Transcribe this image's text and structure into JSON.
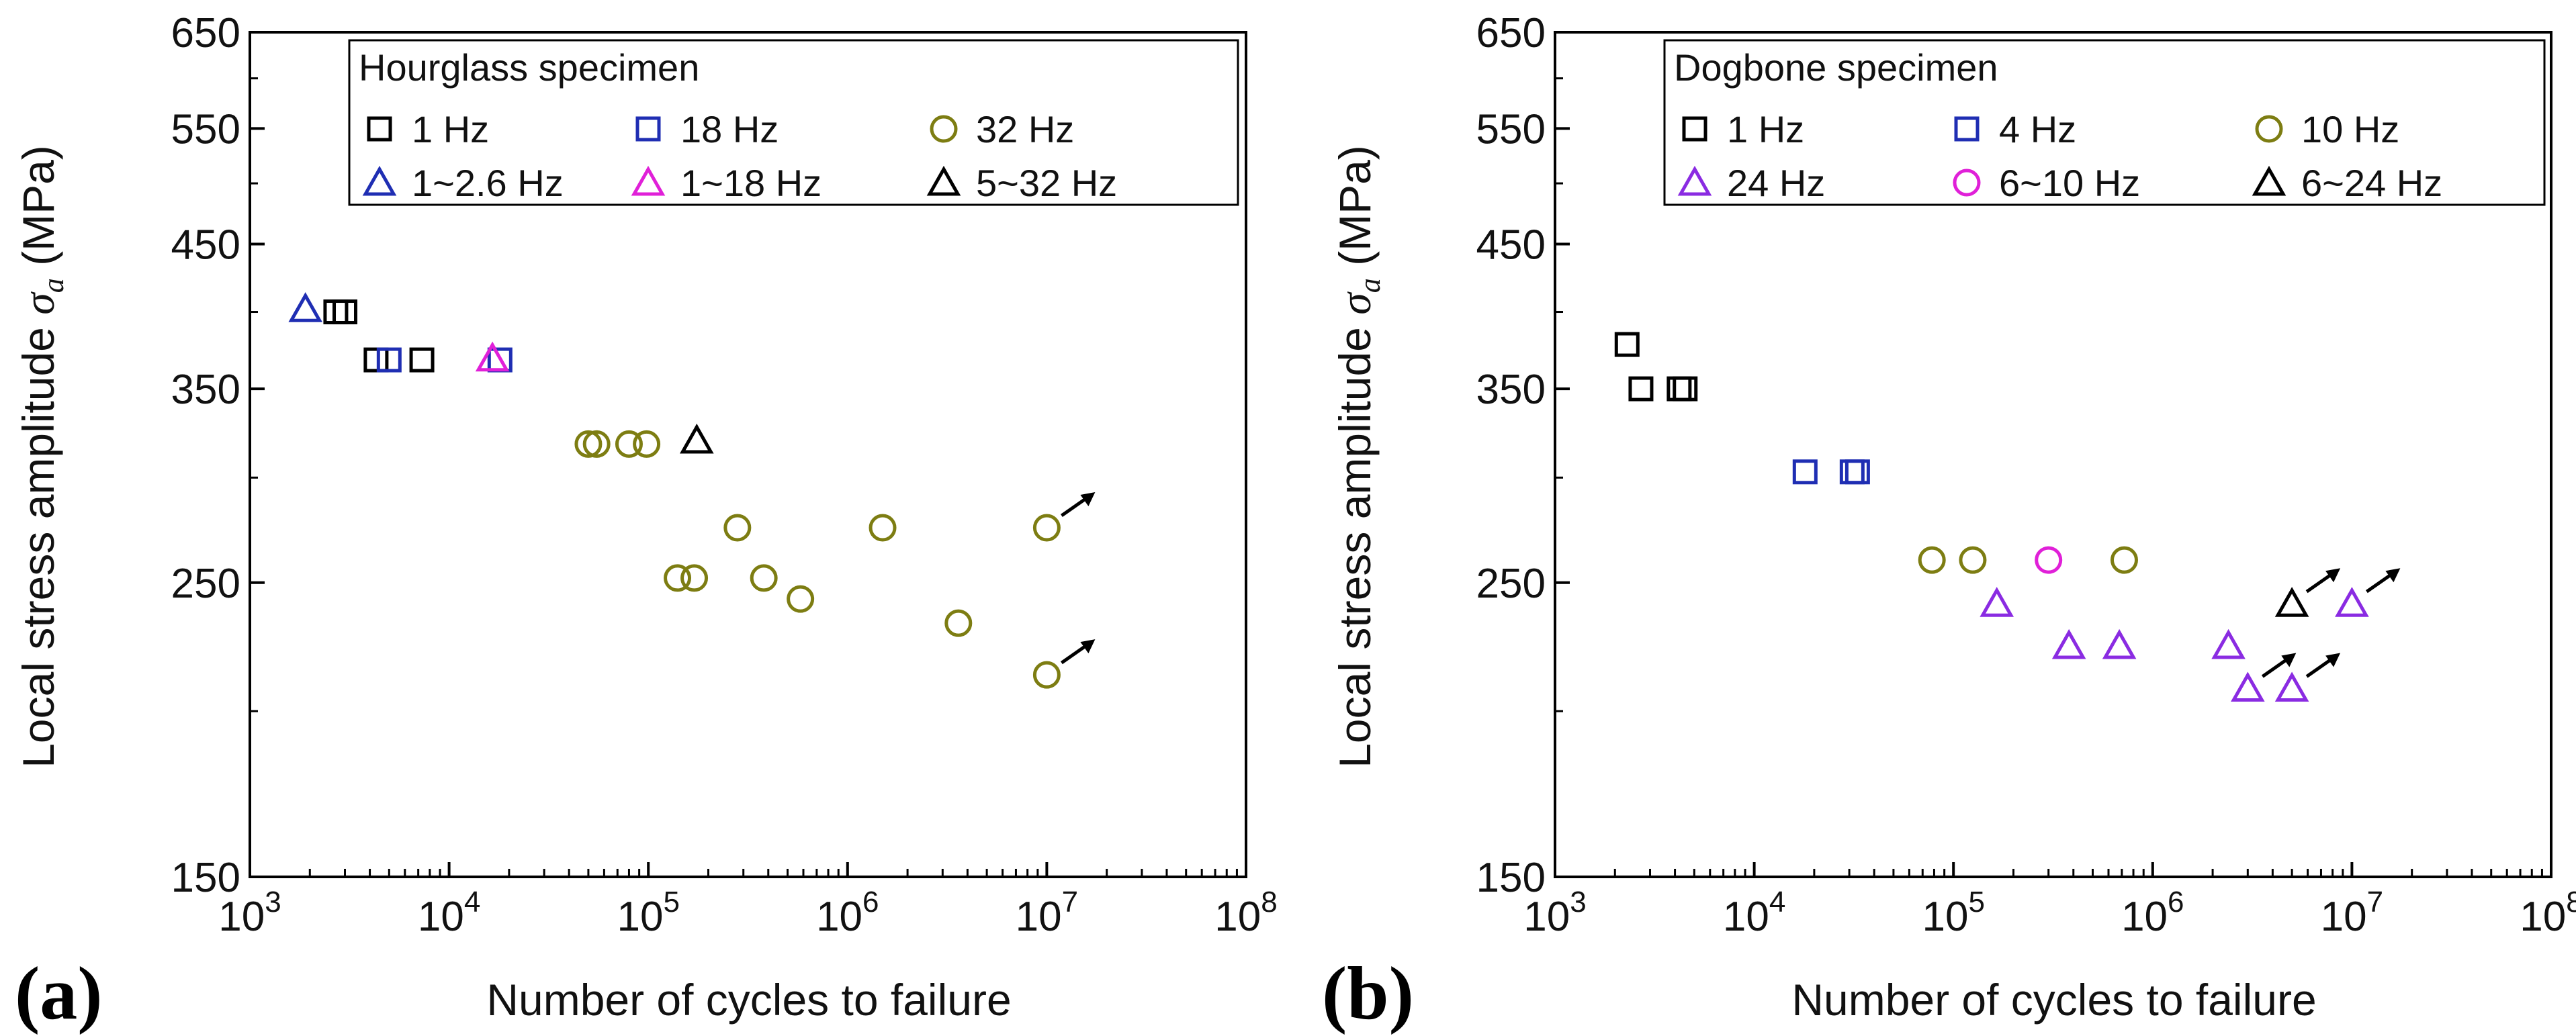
{
  "figure": {
    "panel_a_label": "(a)",
    "panel_b_label": "(b)"
  },
  "chart_data": [
    {
      "type": "scatter",
      "panel": "(a)",
      "xlabel": "Number of cycles to failure",
      "ylabel_main": "Local stress amplitude ",
      "ylabel_symbol": "σ",
      "ylabel_subscript": "a",
      "ylabel_unit": " (MPa)",
      "x_scale": "log",
      "y_scale": "log",
      "xlim": [
        1000,
        100000000
      ],
      "ylim": [
        150,
        650
      ],
      "x_ticks": [
        {
          "base": "10",
          "exp": "3"
        },
        {
          "base": "10",
          "exp": "4"
        },
        {
          "base": "10",
          "exp": "5"
        },
        {
          "base": "10",
          "exp": "6"
        },
        {
          "base": "10",
          "exp": "7"
        },
        {
          "base": "10",
          "exp": "8"
        }
      ],
      "y_ticks": [
        150,
        250,
        350,
        450,
        550,
        650
      ],
      "y_tick_labels": [
        "150",
        "250",
        "350",
        "450",
        "550",
        "650"
      ],
      "legend_title": "Hourglass specimen",
      "legend_position": "top-right",
      "series": [
        {
          "name": "1 Hz",
          "marker": "square",
          "color": "#000000",
          "points": [
            [
              2700,
              400
            ],
            [
              3000,
              400
            ],
            [
              4300,
              368
            ],
            [
              7300,
              368
            ]
          ]
        },
        {
          "name": "18 Hz",
          "marker": "square",
          "color": "#1f2eb3",
          "points": [
            [
              5000,
              368
            ],
            [
              18000,
              368
            ]
          ]
        },
        {
          "name": "32 Hz",
          "marker": "circle",
          "color": "#7d7d12",
          "points": [
            [
              50000,
              318
            ],
            [
              55000,
              318
            ],
            [
              80000,
              318
            ],
            [
              98000,
              318
            ],
            [
              280000,
              275
            ],
            [
              1500000,
              275
            ],
            [
              10000000,
              275,
              "runout"
            ],
            [
              140000,
              252
            ],
            [
              170000,
              252
            ],
            [
              380000,
              252
            ],
            [
              580000,
              243
            ],
            [
              3600000,
              233
            ],
            [
              10000000,
              213,
              "runout"
            ]
          ]
        },
        {
          "name": "1~2.6 Hz",
          "marker": "triangle",
          "color": "#1f2eb3",
          "points": [
            [
              1900,
              402
            ]
          ]
        },
        {
          "name": "1~18 Hz",
          "marker": "triangle",
          "color": "#e020d8",
          "points": [
            [
              16500,
              369
            ]
          ]
        },
        {
          "name": "5~32 Hz",
          "marker": "triangle",
          "color": "#000000",
          "points": [
            [
              175000,
              320
            ]
          ]
        }
      ]
    },
    {
      "type": "scatter",
      "panel": "(b)",
      "xlabel": "Number of cycles to failure",
      "ylabel_main": "Local stress amplitude ",
      "ylabel_symbol": "σ",
      "ylabel_subscript": "a",
      "ylabel_unit": " (MPa)",
      "x_scale": "log",
      "y_scale": "log",
      "xlim": [
        1000,
        100000000
      ],
      "ylim": [
        150,
        650
      ],
      "x_ticks": [
        {
          "base": "10",
          "exp": "3"
        },
        {
          "base": "10",
          "exp": "4"
        },
        {
          "base": "10",
          "exp": "5"
        },
        {
          "base": "10",
          "exp": "6"
        },
        {
          "base": "10",
          "exp": "7"
        },
        {
          "base": "10",
          "exp": "8"
        }
      ],
      "y_ticks": [
        150,
        250,
        350,
        450,
        550,
        650
      ],
      "y_tick_labels": [
        "150",
        "250",
        "350",
        "450",
        "550",
        "650"
      ],
      "legend_title": "Dogbone specimen",
      "legend_position": "top-right",
      "series": [
        {
          "name": "1 Hz",
          "marker": "square",
          "color": "#000000",
          "points": [
            [
              2300,
              378
            ],
            [
              2700,
              350
            ],
            [
              4200,
              350
            ],
            [
              4500,
              350
            ]
          ]
        },
        {
          "name": "4 Hz",
          "marker": "square",
          "color": "#1f2eb3",
          "points": [
            [
              18000,
              303
            ],
            [
              31000,
              303
            ],
            [
              33000,
              303
            ]
          ]
        },
        {
          "name": "10 Hz",
          "marker": "circle",
          "color": "#7d7d12",
          "points": [
            [
              78000,
              260
            ],
            [
              125000,
              260
            ],
            [
              720000,
              260
            ]
          ]
        },
        {
          "name": "24 Hz",
          "marker": "triangle",
          "color": "#8a2be2",
          "points": [
            [
              165000,
              241
            ],
            [
              380000,
              224
            ],
            [
              680000,
              224
            ],
            [
              2400000,
              224
            ],
            [
              3000000,
              208,
              "runout"
            ],
            [
              5000000,
              208,
              "runout"
            ],
            [
              10000000,
              241,
              "runout"
            ]
          ]
        },
        {
          "name": "6~10 Hz",
          "marker": "circle",
          "color": "#e020d8",
          "points": [
            [
              300000,
              260
            ]
          ]
        },
        {
          "name": "6~24 Hz",
          "marker": "triangle",
          "color": "#000000",
          "points": [
            [
              5000000,
              241,
              "runout"
            ]
          ]
        }
      ]
    }
  ]
}
